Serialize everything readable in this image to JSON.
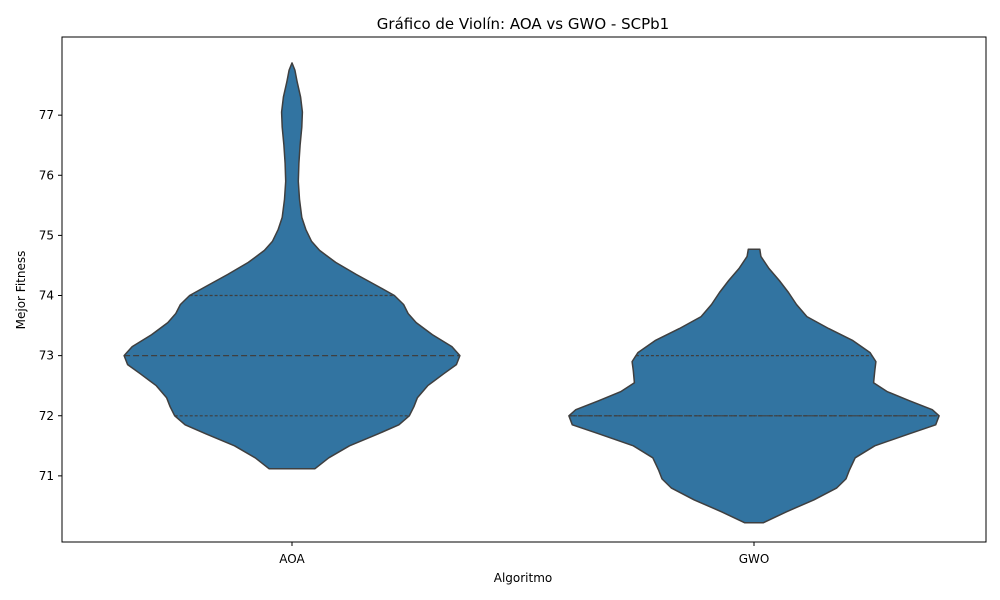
{
  "chart_data": {
    "type": "violin",
    "title": "Gráfico de Violín: AOA vs GWO - SCPb1",
    "xlabel": "Algoritmo",
    "ylabel": "Mejor Fitness",
    "categories": [
      "AOA",
      "GWO"
    ],
    "yticks": [
      71,
      72,
      73,
      74,
      75,
      76,
      77
    ],
    "ylim": [
      69.9,
      78.3
    ],
    "grid": false,
    "color": "#3274a1",
    "edge_color": "#3f3f3f",
    "series": [
      {
        "name": "AOA",
        "min": 71.12,
        "max": 77.87,
        "quartiles": {
          "q1": 72,
          "median": 73,
          "q3": 74
        },
        "density": [
          [
            71.12,
            0.2
          ],
          [
            71.3,
            0.32
          ],
          [
            71.5,
            0.5
          ],
          [
            71.7,
            0.75
          ],
          [
            71.85,
            0.93
          ],
          [
            72.0,
            1.02
          ],
          [
            72.15,
            1.06
          ],
          [
            72.3,
            1.09
          ],
          [
            72.5,
            1.18
          ],
          [
            72.7,
            1.32
          ],
          [
            72.85,
            1.43
          ],
          [
            73.0,
            1.46
          ],
          [
            73.15,
            1.39
          ],
          [
            73.35,
            1.22
          ],
          [
            73.55,
            1.08
          ],
          [
            73.7,
            1.01
          ],
          [
            73.85,
            0.97
          ],
          [
            74.0,
            0.89
          ],
          [
            74.15,
            0.75
          ],
          [
            74.35,
            0.56
          ],
          [
            74.55,
            0.38
          ],
          [
            74.75,
            0.24
          ],
          [
            74.9,
            0.17
          ],
          [
            75.1,
            0.12
          ],
          [
            75.3,
            0.085
          ],
          [
            75.6,
            0.065
          ],
          [
            75.9,
            0.055
          ],
          [
            76.2,
            0.06
          ],
          [
            76.5,
            0.07
          ],
          [
            76.8,
            0.085
          ],
          [
            77.05,
            0.09
          ],
          [
            77.3,
            0.075
          ],
          [
            77.55,
            0.045
          ],
          [
            77.75,
            0.025
          ],
          [
            77.87,
            0.0
          ]
        ]
      },
      {
        "name": "GWO",
        "min": 70.22,
        "max": 74.77,
        "quartiles": {
          "q1": 72,
          "median": 72,
          "q3": 73
        },
        "density": [
          [
            70.22,
            0.08
          ],
          [
            70.4,
            0.28
          ],
          [
            70.6,
            0.52
          ],
          [
            70.8,
            0.72
          ],
          [
            70.95,
            0.8
          ],
          [
            71.1,
            0.83
          ],
          [
            71.3,
            0.88
          ],
          [
            71.5,
            1.05
          ],
          [
            71.7,
            1.35
          ],
          [
            71.85,
            1.58
          ],
          [
            72.0,
            1.61
          ],
          [
            72.1,
            1.55
          ],
          [
            72.25,
            1.35
          ],
          [
            72.4,
            1.16
          ],
          [
            72.55,
            1.04
          ],
          [
            72.75,
            1.05
          ],
          [
            72.9,
            1.06
          ],
          [
            73.05,
            1.01
          ],
          [
            73.25,
            0.86
          ],
          [
            73.45,
            0.65
          ],
          [
            73.65,
            0.46
          ],
          [
            73.85,
            0.37
          ],
          [
            74.05,
            0.3
          ],
          [
            74.25,
            0.22
          ],
          [
            74.45,
            0.13
          ],
          [
            74.65,
            0.06
          ],
          [
            74.77,
            0.05
          ]
        ]
      }
    ]
  }
}
